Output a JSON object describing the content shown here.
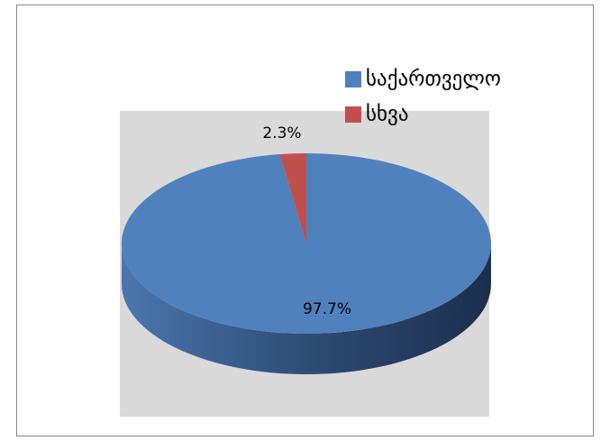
{
  "chart_data": {
    "type": "pie",
    "categories": [
      "საქართველო",
      "სხვა"
    ],
    "values": [
      97.7,
      2.3
    ],
    "value_labels": [
      "97.7%",
      "2.3%"
    ],
    "colors": [
      "#4f81bd",
      "#c0504d"
    ],
    "legend": "top-right",
    "three_d": true
  }
}
